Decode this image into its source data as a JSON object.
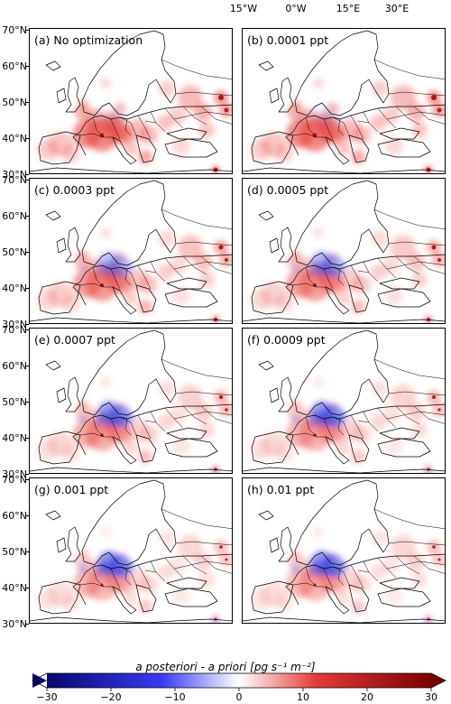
{
  "figure": {
    "top_lon_labels": [
      "15°W",
      "0°W",
      "15°E",
      "30°E"
    ],
    "lat_labels": [
      "70°N",
      "60°N",
      "50°N",
      "40°N",
      "30°N"
    ],
    "panels": [
      {
        "label": "(a) No optimization",
        "blue": 0.05,
        "red": 1.0
      },
      {
        "label": "(b) 0.0001 ppt",
        "blue": 0.08,
        "red": 1.0
      },
      {
        "label": "(c) 0.0003 ppt",
        "blue": 0.45,
        "red": 0.85
      },
      {
        "label": "(d) 0.0005 ppt",
        "blue": 0.55,
        "red": 0.8
      },
      {
        "label": "(e) 0.0007 ppt",
        "blue": 0.75,
        "red": 0.7
      },
      {
        "label": "(f) 0.0009 ppt",
        "blue": 0.8,
        "red": 0.65
      },
      {
        "label": "(g) 0.001 ppt",
        "blue": 0.85,
        "red": 0.6
      },
      {
        "label": "(h) 0.01 ppt",
        "blue": 0.85,
        "red": 0.6
      }
    ]
  },
  "colorbar": {
    "title": "a posteriori - a priori [pg s⁻¹ m⁻²]",
    "ticks": [
      "−30",
      "−20",
      "−10",
      "0",
      "10",
      "20",
      "30"
    ],
    "min": -30,
    "max": 30,
    "colors": {
      "low": "#08086e",
      "mid_low": "#3a3af5",
      "zero": "#ffffff",
      "mid_high": "#e63a3a",
      "high": "#7a0000"
    }
  }
}
